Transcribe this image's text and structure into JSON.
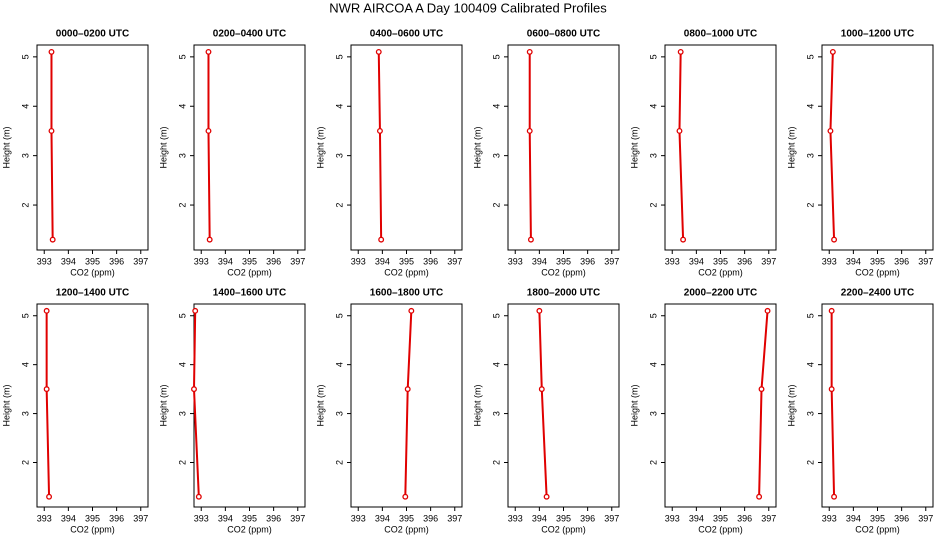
{
  "title": "NWR AIRCOA A  Day 100409  Calibrated Profiles",
  "chart_data": [
    {
      "type": "line",
      "title": "0000–0200 UTC",
      "xlabel": "CO2 (ppm)",
      "ylabel": "Height (m)",
      "x": [
        393.3,
        393.3,
        393.35
      ],
      "values": [
        5.1,
        3.5,
        1.3
      ],
      "color": "#e00000",
      "xlim": [
        392.7,
        397.3
      ],
      "ylim": [
        1.09,
        5.24
      ],
      "xticks": [
        393,
        394,
        395,
        396,
        397
      ],
      "yticks": [
        2,
        3,
        4,
        5
      ]
    },
    {
      "type": "line",
      "title": "0200–0400 UTC",
      "xlabel": "CO2 (ppm)",
      "ylabel": "Height (m)",
      "x": [
        393.3,
        393.3,
        393.35
      ],
      "values": [
        5.1,
        3.5,
        1.3
      ],
      "color": "#e00000",
      "xlim": [
        392.7,
        397.3
      ],
      "ylim": [
        1.09,
        5.24
      ],
      "xticks": [
        393,
        394,
        395,
        396,
        397
      ],
      "yticks": [
        2,
        3,
        4,
        5
      ]
    },
    {
      "type": "line",
      "title": "0400–0600 UTC",
      "xlabel": "CO2 (ppm)",
      "ylabel": "Height (m)",
      "x": [
        393.85,
        393.9,
        393.95
      ],
      "values": [
        5.1,
        3.5,
        1.3
      ],
      "color": "#e00000",
      "xlim": [
        392.7,
        397.3
      ],
      "ylim": [
        1.09,
        5.24
      ],
      "xticks": [
        393,
        394,
        395,
        396,
        397
      ],
      "yticks": [
        2,
        3,
        4,
        5
      ]
    },
    {
      "type": "line",
      "title": "0600–0800 UTC",
      "xlabel": "CO2 (ppm)",
      "ylabel": "Height (m)",
      "x": [
        393.6,
        393.6,
        393.65
      ],
      "values": [
        5.1,
        3.5,
        1.3
      ],
      "color": "#e00000",
      "xlim": [
        392.7,
        397.3
      ],
      "ylim": [
        1.09,
        5.24
      ],
      "xticks": [
        393,
        394,
        395,
        396,
        397
      ],
      "yticks": [
        2,
        3,
        4,
        5
      ]
    },
    {
      "type": "line",
      "title": "0800–1000 UTC",
      "xlabel": "CO2 (ppm)",
      "ylabel": "Height (m)",
      "x": [
        393.35,
        393.3,
        393.45
      ],
      "values": [
        5.1,
        3.5,
        1.3
      ],
      "color": "#e00000",
      "xlim": [
        392.7,
        397.3
      ],
      "ylim": [
        1.09,
        5.24
      ],
      "xticks": [
        393,
        394,
        395,
        396,
        397
      ],
      "yticks": [
        2,
        3,
        4,
        5
      ]
    },
    {
      "type": "line",
      "title": "1000–1200 UTC",
      "xlabel": "CO2 (ppm)",
      "ylabel": "Height (m)",
      "x": [
        393.15,
        393.05,
        393.2
      ],
      "values": [
        5.1,
        3.5,
        1.3
      ],
      "color": "#e00000",
      "xlim": [
        392.7,
        397.3
      ],
      "ylim": [
        1.09,
        5.24
      ],
      "xticks": [
        393,
        394,
        395,
        396,
        397
      ],
      "yticks": [
        2,
        3,
        4,
        5
      ]
    },
    {
      "type": "line",
      "title": "1200–1400 UTC",
      "xlabel": "CO2 (ppm)",
      "ylabel": "Height (m)",
      "x": [
        393.1,
        393.1,
        393.2
      ],
      "values": [
        5.1,
        3.5,
        1.3
      ],
      "color": "#e00000",
      "xlim": [
        392.7,
        397.3
      ],
      "ylim": [
        1.09,
        5.24
      ],
      "xticks": [
        393,
        394,
        395,
        396,
        397
      ],
      "yticks": [
        2,
        3,
        4,
        5
      ]
    },
    {
      "type": "line",
      "title": "1400–1600 UTC",
      "xlabel": "CO2 (ppm)",
      "ylabel": "Height (m)",
      "x": [
        392.75,
        392.7,
        392.9
      ],
      "values": [
        5.1,
        3.5,
        1.3
      ],
      "color": "#e00000",
      "xlim": [
        392.7,
        397.3
      ],
      "ylim": [
        1.09,
        5.24
      ],
      "xticks": [
        393,
        394,
        395,
        396,
        397
      ],
      "yticks": [
        2,
        3,
        4,
        5
      ]
    },
    {
      "type": "line",
      "title": "1600–1800 UTC",
      "xlabel": "CO2 (ppm)",
      "ylabel": "Height (m)",
      "x": [
        395.2,
        395.05,
        394.95
      ],
      "values": [
        5.1,
        3.5,
        1.3
      ],
      "color": "#e00000",
      "xlim": [
        392.7,
        397.3
      ],
      "ylim": [
        1.09,
        5.24
      ],
      "xticks": [
        393,
        394,
        395,
        396,
        397
      ],
      "yticks": [
        2,
        3,
        4,
        5
      ]
    },
    {
      "type": "line",
      "title": "1800–2000 UTC",
      "xlabel": "CO2 (ppm)",
      "ylabel": "Height (m)",
      "x": [
        394,
        394.1,
        394.3
      ],
      "values": [
        5.1,
        3.5,
        1.3
      ],
      "color": "#e00000",
      "xlim": [
        392.7,
        397.3
      ],
      "ylim": [
        1.09,
        5.24
      ],
      "xticks": [
        393,
        394,
        395,
        396,
        397
      ],
      "yticks": [
        2,
        3,
        4,
        5
      ]
    },
    {
      "type": "line",
      "title": "2000–2200 UTC",
      "xlabel": "CO2 (ppm)",
      "ylabel": "Height (m)",
      "x": [
        396.95,
        396.7,
        396.6
      ],
      "values": [
        5.1,
        3.5,
        1.3
      ],
      "color": "#e00000",
      "xlim": [
        392.7,
        397.3
      ],
      "ylim": [
        1.09,
        5.24
      ],
      "xticks": [
        393,
        394,
        395,
        396,
        397
      ],
      "yticks": [
        2,
        3,
        4,
        5
      ]
    },
    {
      "type": "line",
      "title": "2200–2400 UTC",
      "xlabel": "CO2 (ppm)",
      "ylabel": "Height (m)",
      "x": [
        393.1,
        393.1,
        393.2
      ],
      "values": [
        5.1,
        3.5,
        1.3
      ],
      "color": "#e00000",
      "xlim": [
        392.7,
        397.3
      ],
      "ylim": [
        1.09,
        5.24
      ],
      "xticks": [
        393,
        394,
        395,
        396,
        397
      ],
      "yticks": [
        2,
        3,
        4,
        5
      ]
    }
  ]
}
